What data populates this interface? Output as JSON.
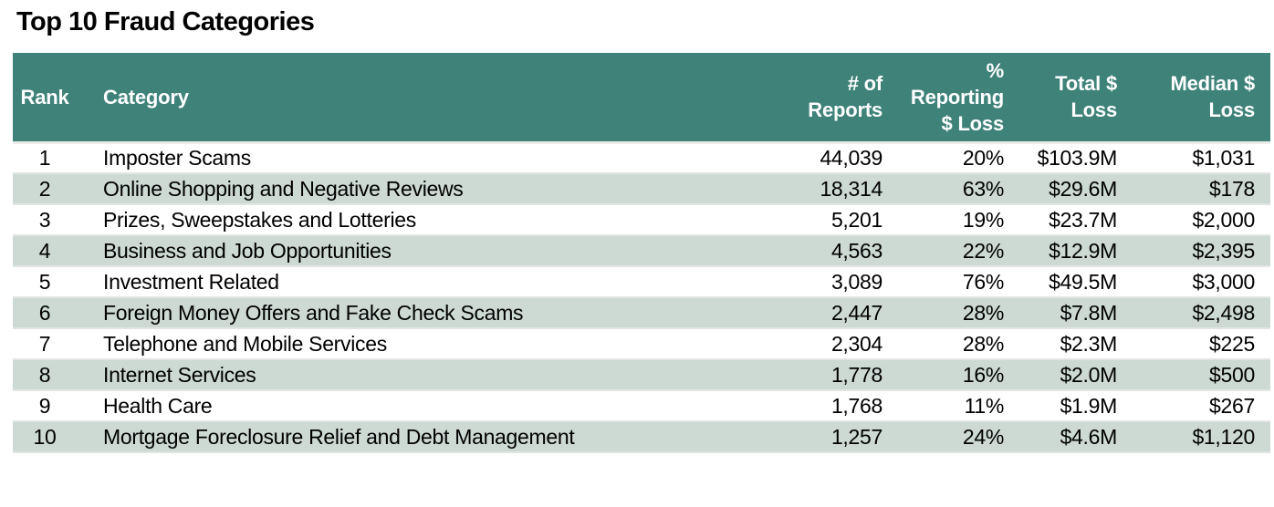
{
  "page": {
    "title": "Top 10 Fraud Categories"
  },
  "colors": {
    "header_bg": "#3E827A",
    "header_text": "#FFFFFF",
    "stripe_bg": "#CDD9D3",
    "body_text": "#000000",
    "row_divider": "#E2E6E3"
  },
  "table": {
    "columns": [
      {
        "key": "rank",
        "label": "Rank",
        "align": "center"
      },
      {
        "key": "category",
        "label": "Category",
        "align": "left"
      },
      {
        "key": "reports",
        "label": "# of\nReports",
        "align": "right"
      },
      {
        "key": "pct",
        "label": "%\nReporting\n$ Loss",
        "align": "right"
      },
      {
        "key": "total",
        "label": "Total $\nLoss",
        "align": "right"
      },
      {
        "key": "median",
        "label": "Median $\nLoss",
        "align": "right"
      }
    ],
    "rows": [
      {
        "rank": "1",
        "category": "Imposter Scams",
        "reports": "44,039",
        "pct": "20%",
        "total": "$103.9M",
        "median": "$1,031"
      },
      {
        "rank": "2",
        "category": "Online Shopping and Negative Reviews",
        "reports": "18,314",
        "pct": "63%",
        "total": "$29.6M",
        "median": "$178"
      },
      {
        "rank": "3",
        "category": "Prizes, Sweepstakes and Lotteries",
        "reports": "5,201",
        "pct": "19%",
        "total": "$23.7M",
        "median": "$2,000"
      },
      {
        "rank": "4",
        "category": "Business and Job Opportunities",
        "reports": "4,563",
        "pct": "22%",
        "total": "$12.9M",
        "median": "$2,395"
      },
      {
        "rank": "5",
        "category": "Investment Related",
        "reports": "3,089",
        "pct": "76%",
        "total": "$49.5M",
        "median": "$3,000"
      },
      {
        "rank": "6",
        "category": "Foreign Money Offers and Fake Check Scams",
        "reports": "2,447",
        "pct": "28%",
        "total": "$7.8M",
        "median": "$2,498"
      },
      {
        "rank": "7",
        "category": "Telephone and Mobile Services",
        "reports": "2,304",
        "pct": "28%",
        "total": "$2.3M",
        "median": "$225"
      },
      {
        "rank": "8",
        "category": "Internet Services",
        "reports": "1,778",
        "pct": "16%",
        "total": "$2.0M",
        "median": "$500"
      },
      {
        "rank": "9",
        "category": "Health Care",
        "reports": "1,768",
        "pct": "11%",
        "total": "$1.9M",
        "median": "$267"
      },
      {
        "rank": "10",
        "category": "Mortgage Foreclosure Relief and Debt Management",
        "reports": "1,257",
        "pct": "24%",
        "total": "$4.6M",
        "median": "$1,120"
      }
    ]
  }
}
